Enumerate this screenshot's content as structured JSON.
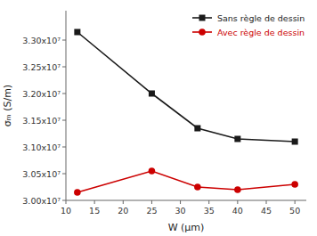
{
  "chart_data": {
    "type": "line",
    "x": [
      12,
      25,
      33,
      40,
      50
    ],
    "series": [
      {
        "name": "Sans règle de dessin",
        "color": "#1a1a1a",
        "marker": "square",
        "values": [
          33150000.0,
          32000000.0,
          31350000.0,
          31150000.0,
          31100000.0
        ]
      },
      {
        "name": "Avec règle de dessin",
        "color": "#cc0000",
        "marker": "circle",
        "values": [
          30150000.0,
          30550000.0,
          30250000.0,
          30200000.0,
          30300000.0
        ]
      }
    ],
    "xlabel": "W (μm)",
    "ylabel": "σₘ (S/m)",
    "xlim": [
      10,
      52
    ],
    "ylim": [
      30000000.0,
      33550000.0
    ],
    "xticks": [
      10,
      15,
      20,
      25,
      30,
      35,
      40,
      45,
      50
    ],
    "yticks": [
      {
        "value": 30000000.0,
        "label": "3.00x10⁷"
      },
      {
        "value": 30500000.0,
        "label": "3.05x10⁷"
      },
      {
        "value": 31000000.0,
        "label": "3.10x10⁷"
      },
      {
        "value": 31500000.0,
        "label": "3.15x10⁷"
      },
      {
        "value": 32000000.0,
        "label": "3.20x10⁷"
      },
      {
        "value": 32500000.0,
        "label": "3.25x10⁷"
      },
      {
        "value": 33000000.0,
        "label": "3.30x10⁷"
      }
    ],
    "grid": false,
    "legend": "upper right"
  }
}
